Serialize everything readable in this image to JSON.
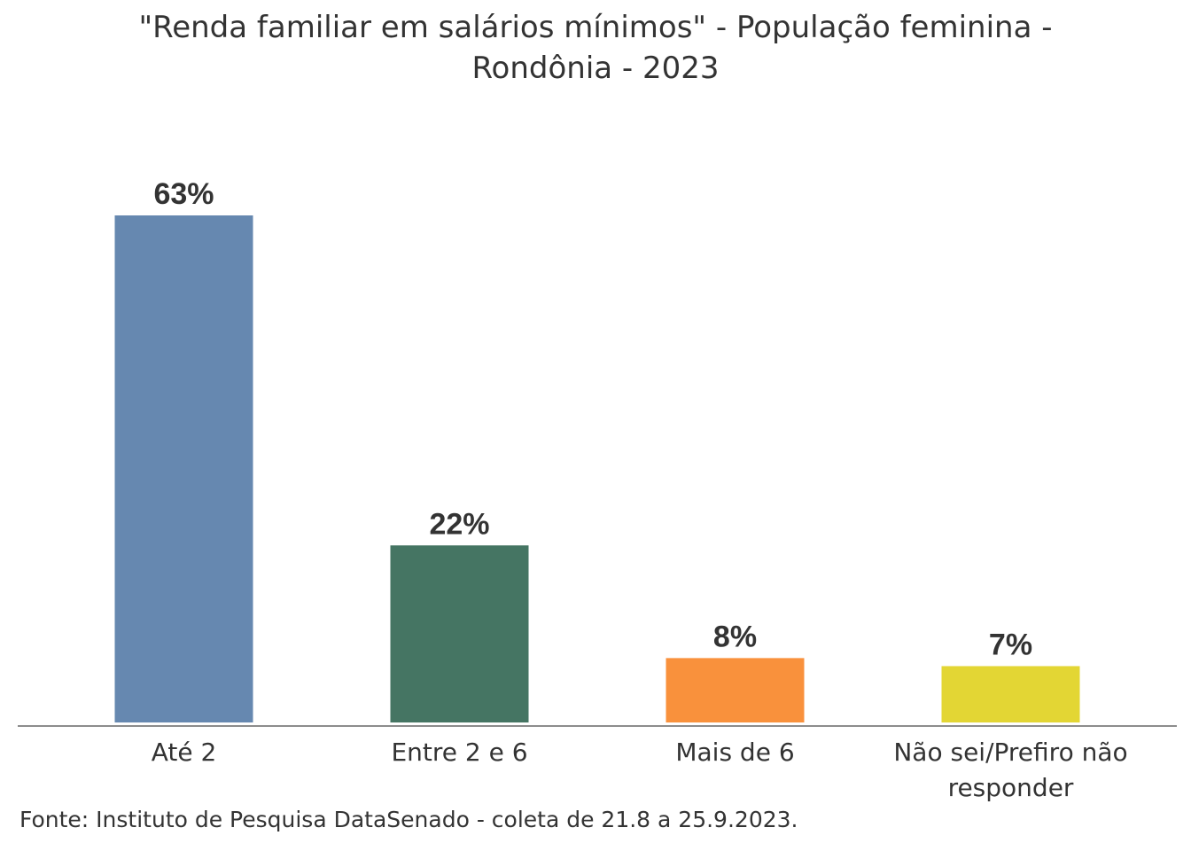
{
  "chart_data": {
    "type": "bar",
    "title_lines": [
      "\"Renda familiar em salários mínimos\" - População feminina -",
      "Rondônia - 2023"
    ],
    "categories": [
      [
        "Até 2"
      ],
      [
        "Entre 2 e 6"
      ],
      [
        "Mais de 6"
      ],
      [
        "Não sei/Prefiro não",
        "responder"
      ]
    ],
    "values": [
      63,
      22,
      8,
      7
    ],
    "value_labels": [
      "63%",
      "22%",
      "8%",
      "7%"
    ],
    "colors": [
      "#6688b0",
      "#457563",
      "#f9913c",
      "#e3d634"
    ],
    "ylim": [
      0,
      63
    ],
    "grid": false,
    "legend": "none",
    "xlabel": "",
    "ylabel": ""
  },
  "source": "Fonte: Instituto de Pesquisa DataSenado - coleta de 21.8 a 25.9.2023."
}
